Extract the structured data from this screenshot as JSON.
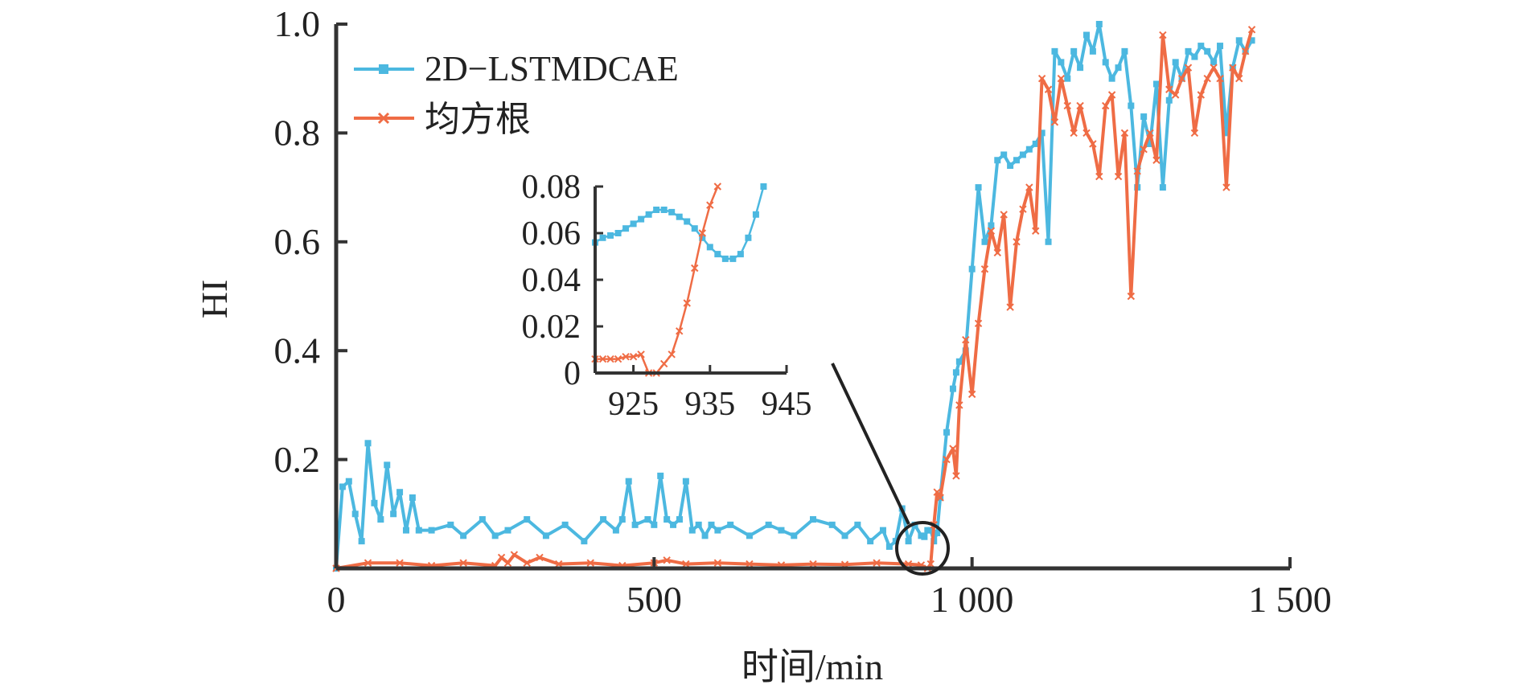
{
  "chart_data": [
    {
      "id": "main",
      "type": "line",
      "title": "",
      "xlabel": "时间/min",
      "ylabel": "HI",
      "xlim": [
        0,
        1500
      ],
      "ylim": [
        0,
        1.0
      ],
      "xticks": [
        0,
        500,
        1000,
        1500
      ],
      "xtick_labels": [
        "0",
        "500",
        "1 000",
        "1 500"
      ],
      "yticks": [
        0.2,
        0.4,
        0.6,
        0.8,
        1.0
      ],
      "ytick_labels": [
        "0.2",
        "0.4",
        "0.6",
        "0.8",
        "1.0"
      ],
      "grid": false,
      "legend_position": "top-left",
      "series": [
        {
          "name": "2D−LSTMDCAE",
          "color": "#4cb8e0",
          "marker": "square",
          "x": [
            0,
            10,
            20,
            30,
            40,
            50,
            60,
            70,
            80,
            90,
            100,
            110,
            120,
            130,
            150,
            180,
            200,
            230,
            250,
            270,
            300,
            330,
            360,
            390,
            420,
            440,
            450,
            460,
            470,
            490,
            500,
            510,
            520,
            530,
            540,
            550,
            560,
            570,
            580,
            590,
            600,
            620,
            650,
            680,
            700,
            720,
            750,
            780,
            800,
            820,
            840,
            860,
            870,
            880,
            890,
            900,
            910,
            920,
            925,
            930,
            935,
            940,
            945,
            950,
            960,
            970,
            975,
            980,
            990,
            1000,
            1010,
            1020,
            1030,
            1040,
            1050,
            1060,
            1070,
            1080,
            1090,
            1100,
            1110,
            1120,
            1130,
            1140,
            1150,
            1160,
            1170,
            1180,
            1190,
            1200,
            1210,
            1220,
            1230,
            1240,
            1250,
            1260,
            1270,
            1280,
            1290,
            1300,
            1310,
            1320,
            1330,
            1340,
            1350,
            1360,
            1370,
            1380,
            1390,
            1400,
            1410,
            1420,
            1430,
            1440
          ],
          "y": [
            0.0,
            0.15,
            0.16,
            0.1,
            0.05,
            0.23,
            0.12,
            0.09,
            0.19,
            0.1,
            0.14,
            0.07,
            0.13,
            0.07,
            0.07,
            0.08,
            0.06,
            0.09,
            0.06,
            0.07,
            0.09,
            0.06,
            0.08,
            0.05,
            0.09,
            0.07,
            0.09,
            0.16,
            0.08,
            0.09,
            0.08,
            0.17,
            0.09,
            0.08,
            0.09,
            0.16,
            0.07,
            0.08,
            0.06,
            0.08,
            0.07,
            0.08,
            0.06,
            0.08,
            0.07,
            0.06,
            0.09,
            0.08,
            0.06,
            0.08,
            0.05,
            0.07,
            0.04,
            0.05,
            0.11,
            0.05,
            0.08,
            0.06,
            0.058,
            0.07,
            0.07,
            0.05,
            0.065,
            0.13,
            0.25,
            0.33,
            0.36,
            0.38,
            0.4,
            0.55,
            0.7,
            0.6,
            0.63,
            0.75,
            0.76,
            0.74,
            0.75,
            0.76,
            0.77,
            0.78,
            0.8,
            0.6,
            0.95,
            0.93,
            0.9,
            0.95,
            0.92,
            0.98,
            0.95,
            1.0,
            0.93,
            0.9,
            0.92,
            0.95,
            0.85,
            0.7,
            0.83,
            0.78,
            0.89,
            0.7,
            0.86,
            0.93,
            0.9,
            0.95,
            0.94,
            0.96,
            0.95,
            0.93,
            0.96,
            0.8,
            0.92,
            0.97,
            0.95,
            0.97
          ]
        },
        {
          "name": "均方根",
          "color": "#ef6c45",
          "marker": "x",
          "x": [
            0,
            50,
            100,
            150,
            200,
            250,
            260,
            270,
            280,
            300,
            320,
            350,
            400,
            450,
            500,
            520,
            550,
            600,
            650,
            700,
            750,
            800,
            850,
            900,
            920,
            930,
            935,
            940,
            945,
            950,
            960,
            970,
            975,
            980,
            990,
            1000,
            1010,
            1020,
            1030,
            1040,
            1050,
            1060,
            1070,
            1080,
            1090,
            1100,
            1110,
            1120,
            1130,
            1140,
            1150,
            1160,
            1170,
            1180,
            1190,
            1200,
            1210,
            1220,
            1230,
            1240,
            1250,
            1260,
            1270,
            1280,
            1290,
            1300,
            1310,
            1320,
            1330,
            1340,
            1350,
            1360,
            1370,
            1380,
            1390,
            1400,
            1410,
            1420,
            1430,
            1440
          ],
          "y": [
            0.0,
            0.01,
            0.01,
            0.005,
            0.01,
            0.005,
            0.02,
            0.01,
            0.025,
            0.01,
            0.02,
            0.008,
            0.01,
            0.005,
            0.01,
            0.015,
            0.008,
            0.01,
            0.008,
            0.006,
            0.008,
            0.007,
            0.01,
            0.008,
            0.006,
            0.0,
            0.008,
            0.08,
            0.14,
            0.13,
            0.2,
            0.22,
            0.17,
            0.3,
            0.42,
            0.32,
            0.45,
            0.55,
            0.62,
            0.58,
            0.65,
            0.48,
            0.6,
            0.66,
            0.7,
            0.62,
            0.9,
            0.88,
            0.82,
            0.9,
            0.85,
            0.8,
            0.85,
            0.8,
            0.78,
            0.72,
            0.85,
            0.87,
            0.72,
            0.8,
            0.5,
            0.73,
            0.77,
            0.8,
            0.75,
            0.98,
            0.88,
            0.87,
            0.9,
            0.92,
            0.8,
            0.87,
            0.9,
            0.92,
            0.9,
            0.7,
            0.92,
            0.9,
            0.95,
            0.99
          ]
        }
      ]
    },
    {
      "id": "inset",
      "type": "line",
      "title": "",
      "xlabel": "",
      "ylabel": "",
      "xlim": [
        920,
        945
      ],
      "ylim": [
        0,
        0.08
      ],
      "xticks": [
        925,
        935,
        945
      ],
      "xtick_labels": [
        "925",
        "935",
        "945"
      ],
      "yticks": [
        0,
        0.02,
        0.04,
        0.06,
        0.08
      ],
      "ytick_labels": [
        "0",
        "0.02",
        "0.04",
        "0.06",
        "0.08"
      ],
      "grid": false,
      "annotation": "zoom of region around x≈935",
      "series": [
        {
          "name": "2D−LSTMDCAE",
          "color": "#4cb8e0",
          "marker": "square",
          "x": [
            920,
            921,
            922,
            923,
            924,
            925,
            926,
            927,
            928,
            929,
            930,
            931,
            932,
            933,
            934,
            935,
            936,
            937,
            938,
            939,
            940,
            941,
            942
          ],
          "y": [
            0.056,
            0.058,
            0.059,
            0.06,
            0.062,
            0.064,
            0.066,
            0.068,
            0.07,
            0.07,
            0.069,
            0.067,
            0.065,
            0.062,
            0.058,
            0.054,
            0.051,
            0.049,
            0.049,
            0.051,
            0.058,
            0.068,
            0.08
          ]
        },
        {
          "name": "均方根",
          "color": "#ef6c45",
          "marker": "x",
          "x": [
            920,
            921,
            922,
            923,
            924,
            925,
            926,
            927,
            928,
            929,
            930,
            931,
            932,
            933,
            934,
            935,
            936
          ],
          "y": [
            0.006,
            0.006,
            0.006,
            0.006,
            0.007,
            0.007,
            0.008,
            0.0,
            0.0,
            0.004,
            0.008,
            0.018,
            0.03,
            0.045,
            0.06,
            0.072,
            0.08
          ]
        }
      ]
    }
  ]
}
